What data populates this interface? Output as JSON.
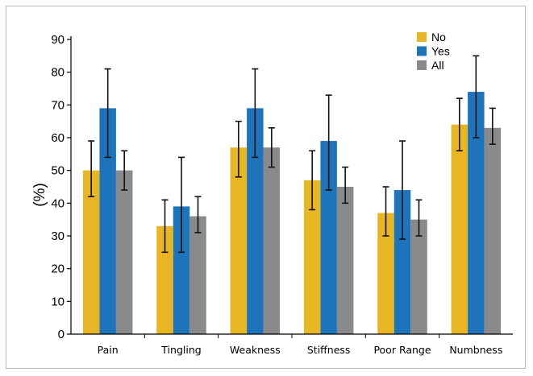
{
  "chart_data": {
    "type": "bar",
    "title": "",
    "xlabel": "",
    "ylabel": "(%)",
    "ylim": [
      0,
      90
    ],
    "yticks": [
      0,
      10,
      20,
      30,
      40,
      50,
      60,
      70,
      80,
      90
    ],
    "grid": false,
    "legend_position": "top-right",
    "categories": [
      "Pain",
      "Tingling",
      "Weakness",
      "Stiffness",
      "Poor Range",
      "Numbness"
    ],
    "series": [
      {
        "name": "No",
        "color": "#e8b523",
        "values": [
          50,
          33,
          57,
          47,
          37,
          64
        ],
        "err_low": [
          42,
          25,
          48,
          38,
          30,
          56
        ],
        "err_high": [
          59,
          41,
          65,
          56,
          45,
          72
        ]
      },
      {
        "name": "Yes",
        "color": "#1e74bb",
        "values": [
          69,
          39,
          69,
          59,
          44,
          74
        ],
        "err_low": [
          54,
          25,
          54,
          44,
          29,
          60
        ],
        "err_high": [
          81,
          54,
          81,
          73,
          59,
          85
        ]
      },
      {
        "name": "All",
        "color": "#8a8a8d",
        "values": [
          50,
          36,
          57,
          45,
          35,
          63
        ],
        "err_low": [
          44,
          31,
          51,
          40,
          30,
          58
        ],
        "err_high": [
          56,
          42,
          63,
          51,
          41,
          69
        ]
      }
    ]
  }
}
